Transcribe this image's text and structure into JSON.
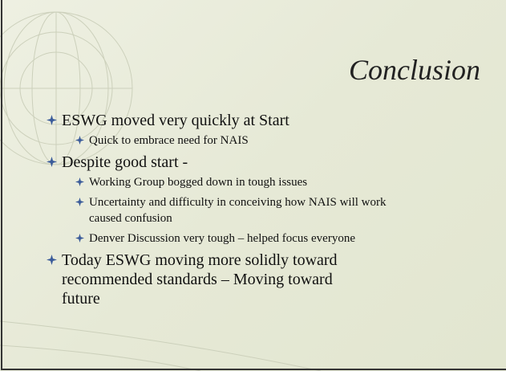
{
  "slide": {
    "title": "Conclusion",
    "bullets": [
      {
        "text": "ESWG moved very quickly at Start",
        "items": [
          "Quick  to embrace need for NAIS"
        ]
      },
      {
        "text": "Despite good start -",
        "items": [
          "Working Group bogged down in tough issues",
          "Uncertainty and difficulty in conceiving how NAIS will work caused confusion",
          "Denver Discussion very tough – helped focus everyone"
        ]
      },
      {
        "text": "Today ESWG moving more solidly toward recommended standards – Moving toward future",
        "items": []
      }
    ]
  }
}
